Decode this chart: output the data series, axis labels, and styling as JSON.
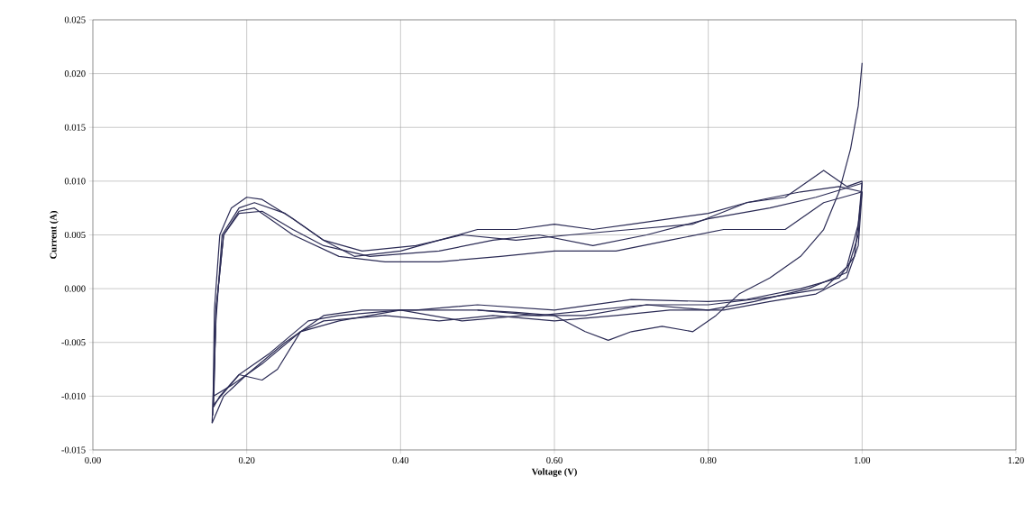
{
  "chart_data": {
    "type": "line",
    "xlabel": "Voltage (V)",
    "ylabel": "Current (A)",
    "grid": true,
    "marker": "none",
    "line_style": "solid",
    "xlim": [
      0,
      1.2
    ],
    "ylim": [
      -0.015,
      0.025
    ],
    "xticks": [
      {
        "value": 0,
        "label": "0.00"
      },
      {
        "value": 0.2,
        "label": "0.20"
      },
      {
        "value": 0.4,
        "label": "0.40"
      },
      {
        "value": 0.6,
        "label": "0.60"
      },
      {
        "value": 0.8,
        "label": "0.80"
      },
      {
        "value": 1.0,
        "label": "1.00"
      },
      {
        "value": 1.2,
        "label": "1.20"
      }
    ],
    "yticks": [
      {
        "value": -0.015,
        "label": "-0.015"
      },
      {
        "value": -0.01,
        "label": "-0.010"
      },
      {
        "value": -0.005,
        "label": "-0.005"
      },
      {
        "value": 0,
        "label": "0.000"
      },
      {
        "value": 0.005,
        "label": "0.005"
      },
      {
        "value": 0.01,
        "label": "0.010"
      },
      {
        "value": 0.015,
        "label": "0.015"
      },
      {
        "value": 0.02,
        "label": "0.020"
      },
      {
        "value": 0.025,
        "label": "0.025"
      }
    ],
    "series": [
      {
        "color": "#2b2b55",
        "x": [
          0.156,
          0.158,
          0.165,
          0.18,
          0.2,
          0.22,
          0.26,
          0.3,
          0.34,
          0.4,
          0.45,
          0.5,
          0.55,
          0.6,
          0.65,
          0.7,
          0.75,
          0.8,
          0.85,
          0.9,
          0.95,
          0.98,
          1.0
        ],
        "values": [
          -0.0118,
          -0.002,
          0.005,
          0.0075,
          0.0085,
          0.0083,
          0.0065,
          0.0045,
          0.003,
          0.0035,
          0.0045,
          0.0055,
          0.0055,
          0.006,
          0.0055,
          0.006,
          0.0065,
          0.007,
          0.008,
          0.0085,
          0.011,
          0.0095,
          0.01
        ]
      },
      {
        "color": "#2b2b55",
        "x": [
          0.155,
          0.17,
          0.2,
          0.25,
          0.3,
          0.35,
          0.42,
          0.5,
          0.6,
          0.7,
          0.8,
          0.85,
          0.92,
          0.97,
          0.99,
          0.995,
          1.0
        ],
        "values": [
          -0.0125,
          -0.01,
          -0.008,
          -0.005,
          -0.0025,
          -0.002,
          -0.002,
          -0.0015,
          -0.002,
          -0.001,
          -0.0012,
          -0.001,
          0.0,
          0.001,
          0.003,
          0.006,
          0.01
        ]
      },
      {
        "color": "#2b2b55",
        "x": [
          0.155,
          0.16,
          0.168,
          0.19,
          0.21,
          0.25,
          0.3,
          0.35,
          0.42,
          0.48,
          0.55,
          0.62,
          0.7,
          0.78,
          0.85,
          0.92,
          0.97,
          1.0
        ],
        "values": [
          -0.0125,
          -0.003,
          0.005,
          0.0075,
          0.008,
          0.007,
          0.0045,
          0.0035,
          0.004,
          0.005,
          0.0045,
          0.005,
          0.0055,
          0.006,
          0.008,
          0.009,
          0.0095,
          0.009
        ]
      },
      {
        "color": "#2b2b55",
        "x": [
          0.157,
          0.165,
          0.19,
          0.23,
          0.28,
          0.32,
          0.4,
          0.5,
          0.58,
          0.65,
          0.72,
          0.8,
          0.88,
          0.95,
          0.98,
          0.995,
          1.0
        ],
        "values": [
          -0.011,
          -0.01,
          -0.008,
          -0.006,
          -0.003,
          -0.0025,
          -0.002,
          -0.002,
          -0.0025,
          -0.002,
          -0.0015,
          -0.0015,
          -0.0008,
          0.0,
          0.002,
          0.006,
          0.009
        ]
      },
      {
        "color": "#2b2b55",
        "x": [
          0.157,
          0.16,
          0.17,
          0.19,
          0.22,
          0.26,
          0.3,
          0.36,
          0.45,
          0.52,
          0.58,
          0.65,
          0.72,
          0.8,
          0.88,
          0.94,
          1.0
        ],
        "values": [
          -0.011,
          -0.002,
          0.005,
          0.007,
          0.0072,
          0.0055,
          0.004,
          0.003,
          0.0035,
          0.0045,
          0.005,
          0.004,
          0.005,
          0.0065,
          0.0075,
          0.0085,
          0.0098
        ]
      },
      {
        "color": "#2b2b55",
        "x": [
          0.157,
          0.18,
          0.22,
          0.27,
          0.32,
          0.4,
          0.48,
          0.56,
          0.64,
          0.72,
          0.8,
          0.86,
          0.93,
          0.98,
          0.995,
          1.0
        ],
        "values": [
          -0.01,
          -0.009,
          -0.007,
          -0.004,
          -0.003,
          -0.002,
          -0.003,
          -0.0025,
          -0.0025,
          -0.0015,
          -0.002,
          -0.0012,
          0.0,
          0.0015,
          0.005,
          0.0098
        ]
      },
      {
        "color": "#2b2b55",
        "x": [
          0.157,
          0.16,
          0.17,
          0.19,
          0.21,
          0.26,
          0.32,
          0.38,
          0.45,
          0.53,
          0.6,
          0.68,
          0.75,
          0.82,
          0.9,
          0.95,
          1.0
        ],
        "values": [
          -0.01,
          -0.002,
          0.005,
          0.0072,
          0.0075,
          0.005,
          0.003,
          0.0025,
          0.0025,
          0.003,
          0.0035,
          0.0035,
          0.0045,
          0.0055,
          0.0055,
          0.008,
          0.009
        ]
      },
      {
        "color": "#2b2b55",
        "x": [
          0.157,
          0.19,
          0.22,
          0.24,
          0.27,
          0.3,
          0.38,
          0.45,
          0.52,
          0.6,
          0.68,
          0.75,
          0.82,
          0.88,
          0.94,
          0.98,
          0.995,
          1.0
        ],
        "values": [
          -0.0108,
          -0.008,
          -0.0085,
          -0.0075,
          -0.004,
          -0.003,
          -0.0025,
          -0.003,
          -0.0025,
          -0.003,
          -0.0025,
          -0.002,
          -0.002,
          -0.0012,
          -0.0005,
          0.001,
          0.004,
          0.009
        ]
      },
      {
        "color": "#2b2b55",
        "x": [
          0.5,
          0.55,
          0.6,
          0.64,
          0.67,
          0.7,
          0.74,
          0.78,
          0.81,
          0.84,
          0.88,
          0.92,
          0.95,
          0.97,
          0.985,
          0.995,
          1.0
        ],
        "values": [
          -0.002,
          -0.0022,
          -0.0025,
          -0.004,
          -0.0048,
          -0.004,
          -0.0035,
          -0.004,
          -0.0025,
          -0.0005,
          0.001,
          0.003,
          0.0055,
          0.009,
          0.013,
          0.017,
          0.021
        ]
      }
    ]
  }
}
